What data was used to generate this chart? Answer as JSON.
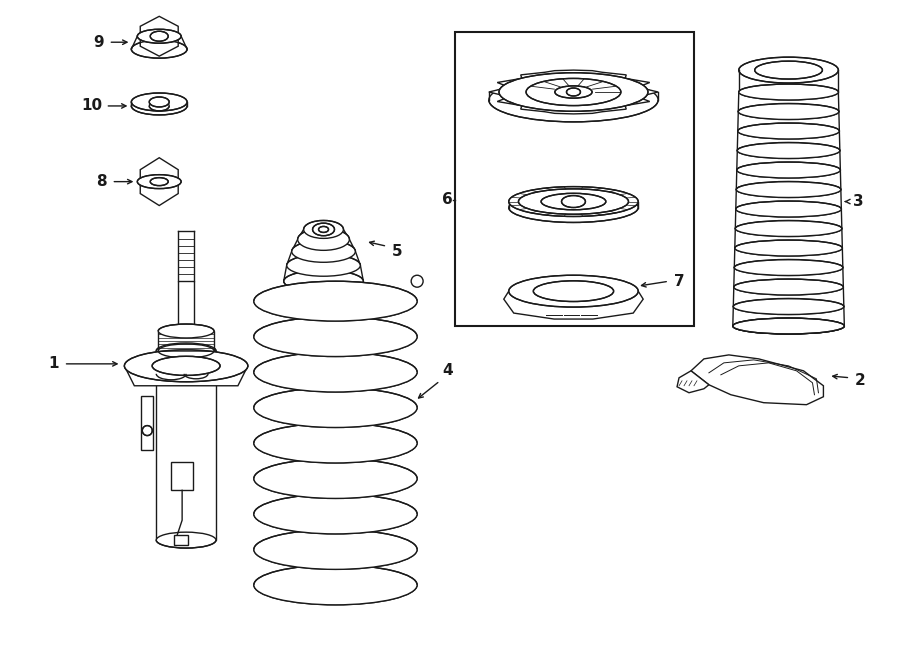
{
  "bg_color": "#ffffff",
  "line_color": "#1a1a1a",
  "lw": 1.0,
  "fig_w": 9.0,
  "fig_h": 6.61,
  "dpi": 100
}
